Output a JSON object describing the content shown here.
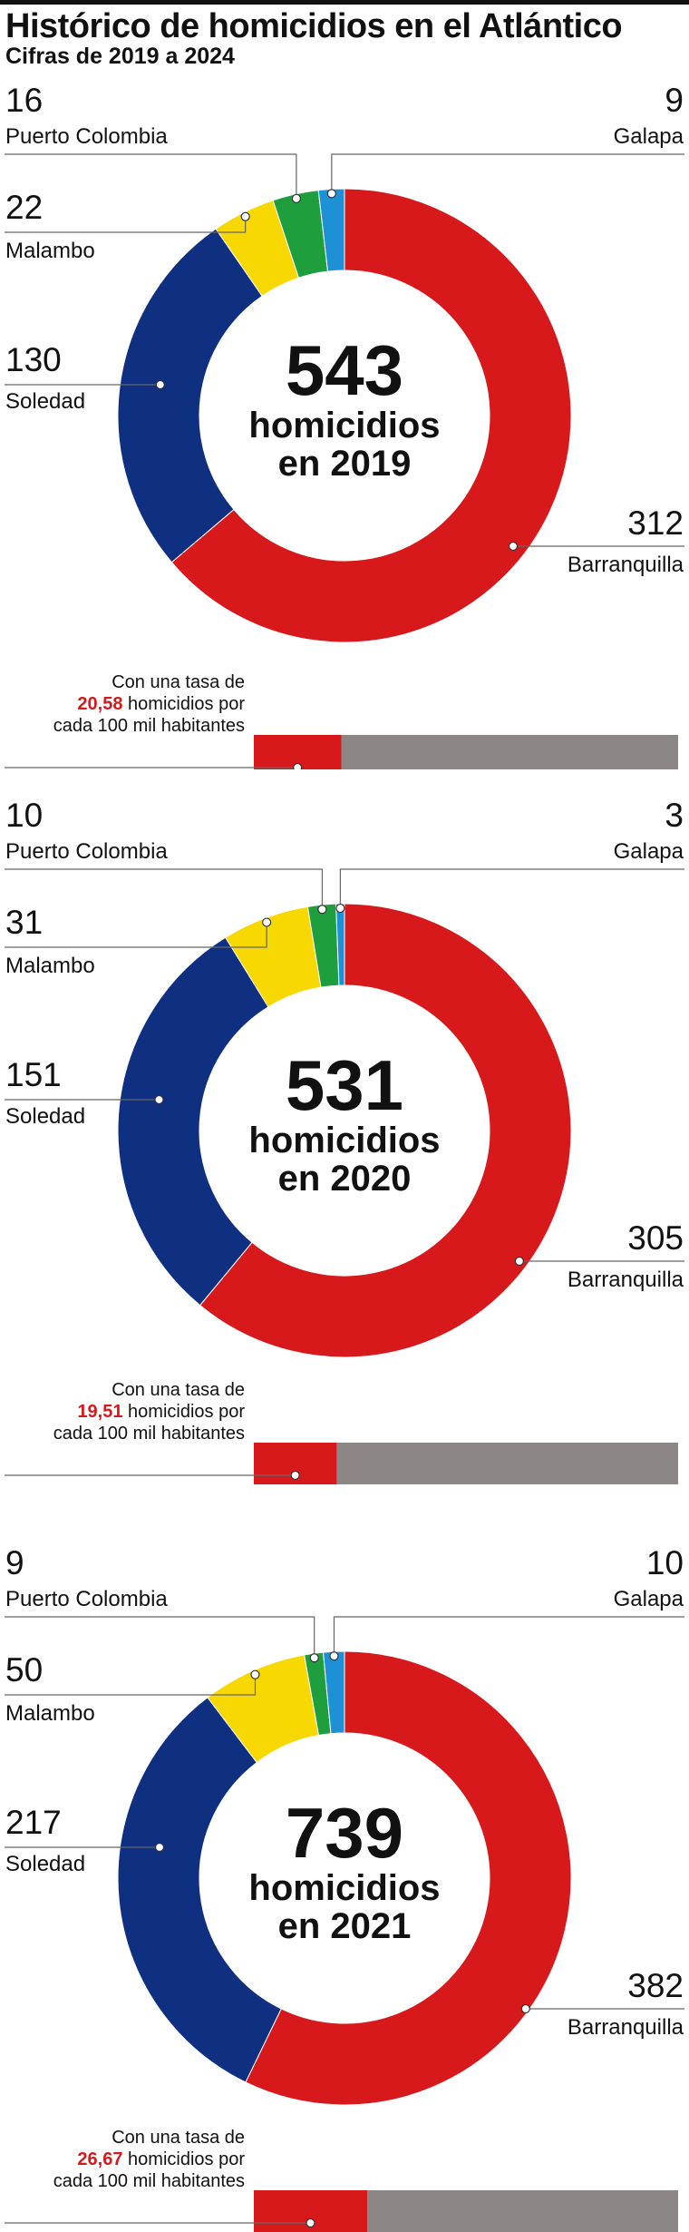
{
  "title": "Histórico de homicidios en el Atlántico",
  "subtitle": "Cifras de 2019 a 2024",
  "unit_label": "homicidios",
  "rate_text": {
    "line1": "Con una tasa de",
    "line2_suffix": "homicidios por",
    "line3": "cada 100 mil habitantes"
  },
  "colors": {
    "Barranquilla": "#d7191c",
    "Soledad": "#0f2f80",
    "Malambo": "#f7d800",
    "Puerto Colombia": "#1f9e3d",
    "Galapa": "#1e90d6",
    "rate_bar": "#d7191c",
    "rate_bar_bg": "#8c8785"
  },
  "chart_data": [
    {
      "type": "pie",
      "title": "543 homicidios en 2019",
      "total": "543",
      "year_label": "en 2019",
      "categories": [
        "Barranquilla",
        "Soledad",
        "Malambo",
        "Puerto Colombia",
        "Galapa"
      ],
      "values": [
        312,
        130,
        22,
        16,
        9
      ],
      "rate": "20,58",
      "rate_bar_fraction": 0.206
    },
    {
      "type": "pie",
      "title": "531 homicidios en 2020",
      "total": "531",
      "year_label": "en 2020",
      "categories": [
        "Barranquilla",
        "Soledad",
        "Malambo",
        "Puerto Colombia",
        "Galapa"
      ],
      "values": [
        305,
        151,
        31,
        10,
        3
      ],
      "rate": "19,51",
      "rate_bar_fraction": 0.195
    },
    {
      "type": "pie",
      "title": "739 homicidios en 2021",
      "total": "739",
      "year_label": "en 2021",
      "categories": [
        "Barranquilla",
        "Soledad",
        "Malambo",
        "Puerto Colombia",
        "Galapa"
      ],
      "values": [
        382,
        217,
        50,
        9,
        10
      ],
      "rate": "26,67",
      "rate_bar_fraction": 0.267
    }
  ]
}
